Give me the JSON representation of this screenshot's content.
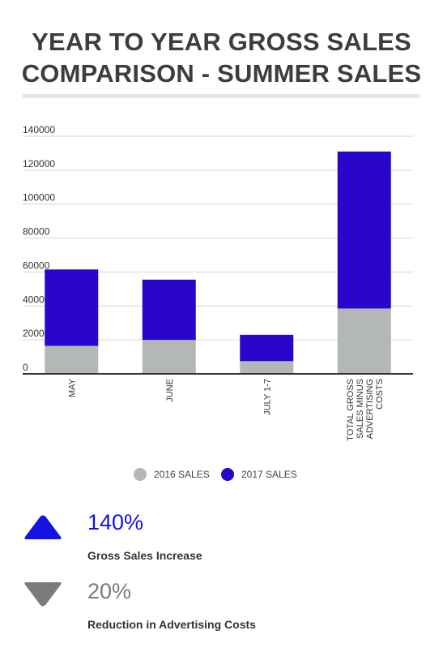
{
  "title_lines": [
    "YEAR TO YEAR GROSS SALES",
    "COMPARISON - SUMMER SALES"
  ],
  "colors": {
    "sales_2016": "#b3b7b5",
    "sales_2017": "#2a05cc",
    "increase": "#1412e0",
    "reduction": "#7b7b7b"
  },
  "chart_data": {
    "type": "bar",
    "stacked": true,
    "categories": [
      "MAY",
      "JUNE",
      "JULY 1-7",
      "TOTAL GROSS SALES MINUS ADVERTISING COSTS"
    ],
    "category_lines": [
      [
        "MAY"
      ],
      [
        "JUNE"
      ],
      [
        "JULY 1-7"
      ],
      [
        "TOTAL GROSS",
        "SALES MINUS",
        "ADVERTISING",
        "COSTS"
      ]
    ],
    "series": [
      {
        "name": "2016 SALES",
        "values": [
          16500,
          20000,
          7500,
          38500
        ]
      },
      {
        "name": "2017 SALES",
        "values": [
          45000,
          35500,
          15500,
          92500
        ]
      }
    ],
    "yticks": [
      0,
      20000,
      40000,
      60000,
      80000,
      100000,
      120000,
      140000
    ],
    "ylim": [
      0,
      140000
    ],
    "grid": true,
    "legend_position": "bottom"
  },
  "stats": [
    {
      "value": "140%",
      "caption": "Gross Sales Increase",
      "icon": "triangle-up-icon"
    },
    {
      "value": "20%",
      "caption": "Reduction in Advertising Costs",
      "icon": "triangle-down-icon"
    }
  ]
}
